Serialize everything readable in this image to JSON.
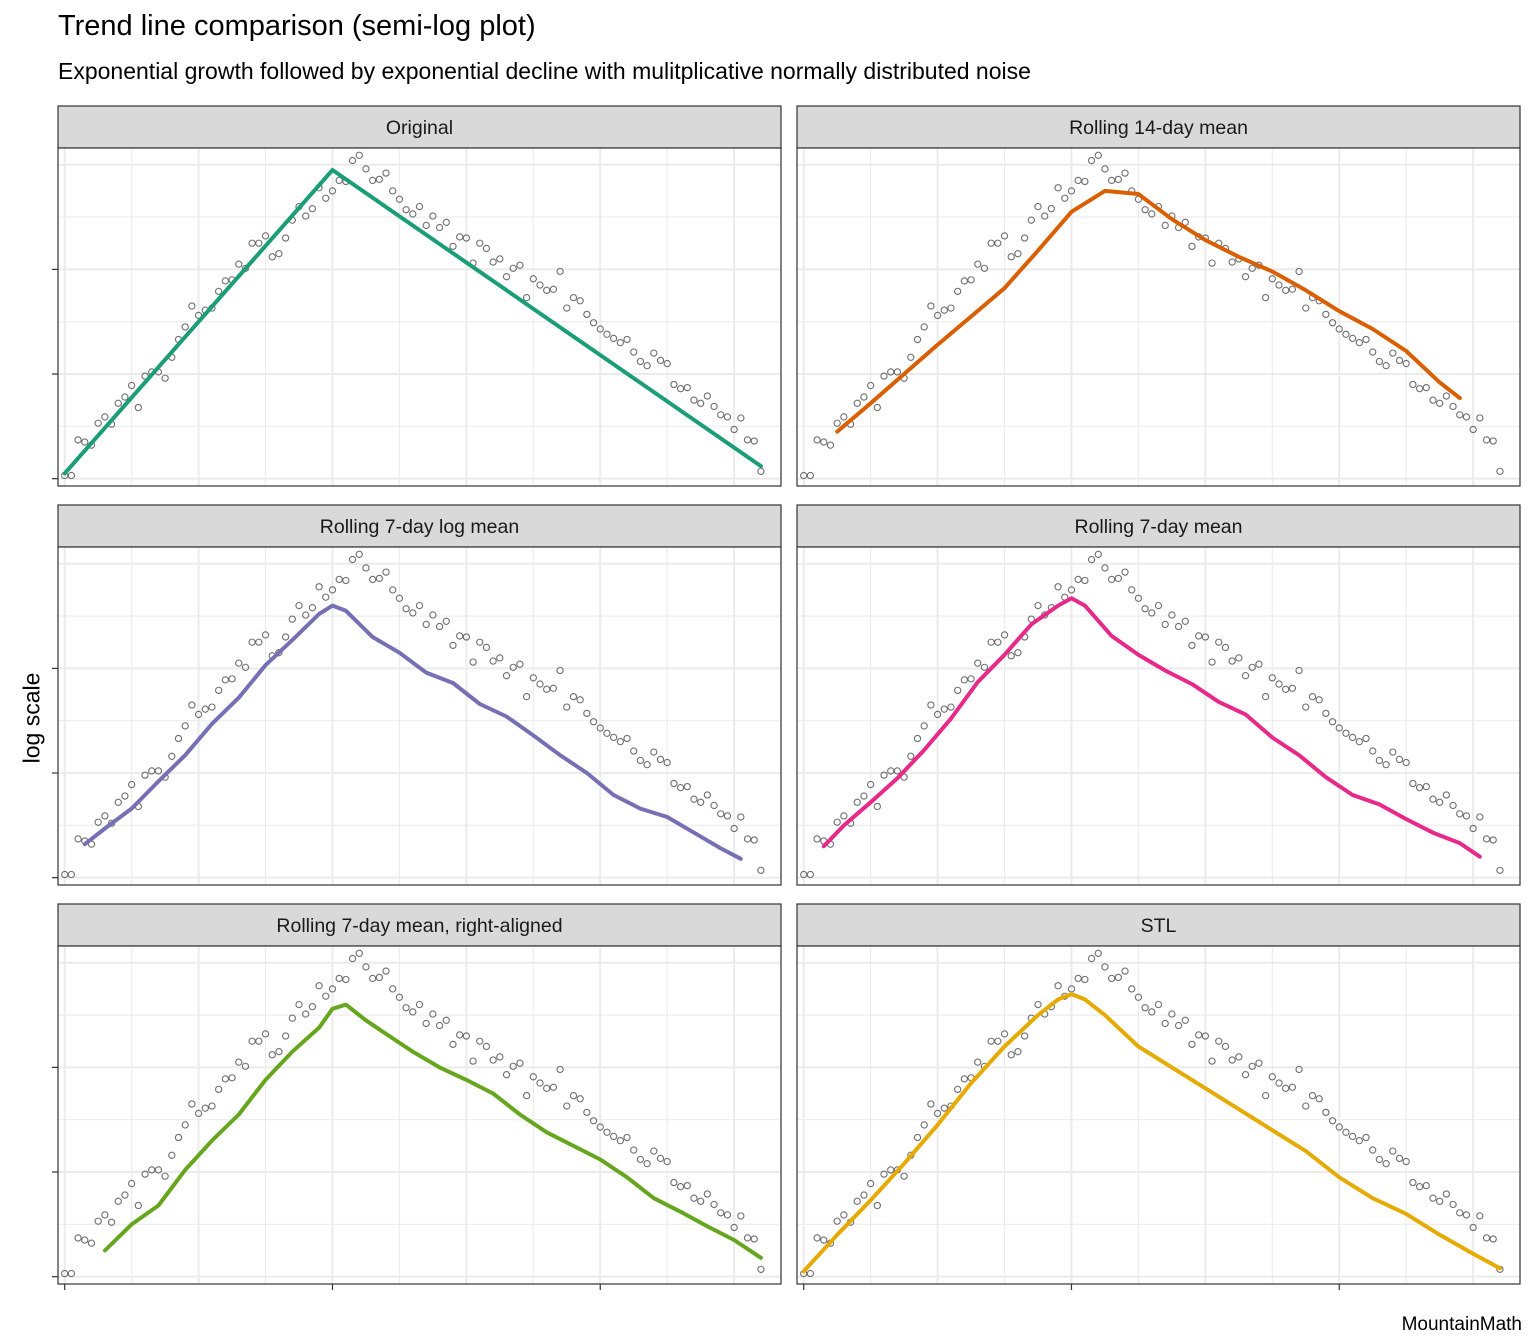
{
  "title": "Trend line comparison (semi-log plot)",
  "subtitle": "Exponential growth followed by exponential decline with mulitplicative normally distributed noise",
  "caption": "MountainMath",
  "colors": {
    "points": "#555555",
    "panel_border": "#333333",
    "strip_fill": "#d9d9d9",
    "grid": "#ebebeb"
  },
  "chart_data": {
    "type": "line",
    "facets": 6,
    "ylabel": "log scale",
    "y_scale": "log",
    "x_tick_labels": [],
    "y_tick_labels": [],
    "grid": true,
    "points": {
      "x": [
        0,
        1,
        2,
        3,
        4,
        5,
        6,
        7,
        8,
        9,
        10,
        11,
        12,
        13,
        14,
        15,
        16,
        17,
        18,
        19,
        20,
        21,
        22,
        23,
        24,
        25,
        26,
        27,
        28,
        29,
        30,
        31,
        32,
        33,
        34,
        35,
        36,
        37,
        38,
        39,
        40,
        41,
        42,
        43,
        44,
        45,
        46,
        47,
        48,
        49,
        50,
        51,
        52,
        53,
        54,
        55,
        56,
        57,
        58,
        59,
        60,
        61,
        62,
        63,
        64,
        65,
        66,
        67,
        68,
        69,
        70,
        71,
        72,
        73,
        74,
        75,
        76,
        77,
        78,
        79,
        80,
        81,
        82,
        83,
        84,
        85,
        86,
        87,
        88,
        89,
        90,
        91,
        92,
        93,
        94,
        95,
        96,
        97,
        98,
        99,
        100,
        101,
        102,
        103,
        104
      ],
      "y": [
        0.03,
        0.03,
        0.37,
        0.35,
        0.32,
        0.53,
        0.59,
        0.52,
        0.72,
        0.78,
        0.89,
        0.68,
        0.98,
        1.02,
        1.02,
        0.96,
        1.16,
        1.33,
        1.45,
        1.65,
        1.56,
        1.61,
        1.63,
        1.79,
        1.89,
        1.9,
        2.05,
        2.01,
        2.25,
        2.25,
        2.32,
        2.12,
        2.15,
        2.3,
        2.47,
        2.6,
        2.51,
        2.58,
        2.78,
        2.68,
        2.75,
        2.85,
        2.84,
        3.04,
        3.09,
        2.96,
        2.85,
        2.86,
        2.92,
        2.75,
        2.67,
        2.57,
        2.53,
        2.6,
        2.42,
        2.51,
        2.4,
        2.45,
        2.22,
        2.31,
        2.3,
        2.06,
        2.25,
        2.2,
        2.07,
        2.1,
        1.93,
        2.01,
        2.04,
        1.73,
        1.91,
        1.85,
        1.8,
        1.81,
        1.98,
        1.63,
        1.73,
        1.7,
        1.57,
        1.49,
        1.43,
        1.38,
        1.34,
        1.3,
        1.33,
        1.21,
        1.12,
        1.08,
        1.2,
        1.13,
        1.1,
        0.9,
        0.86,
        0.87,
        0.75,
        0.72,
        0.79,
        0.69,
        0.61,
        0.59,
        0.47,
        0.58,
        0.37,
        0.36,
        0.07
      ]
    },
    "series": [
      {
        "name": "Original",
        "color": "#1b9e77",
        "x": [
          0,
          40,
          104
        ],
        "y": [
          0.05,
          2.95,
          0.12
        ]
      },
      {
        "name": "Rolling 14-day mean",
        "color": "#d95f02",
        "x": [
          5,
          10,
          15,
          20,
          25,
          30,
          35,
          40,
          45,
          50,
          55,
          60,
          65,
          70,
          75,
          80,
          85,
          90,
          95,
          98
        ],
        "y": [
          0.45,
          0.72,
          1.0,
          1.28,
          1.55,
          1.82,
          2.18,
          2.55,
          2.75,
          2.72,
          2.48,
          2.28,
          2.12,
          1.98,
          1.8,
          1.6,
          1.43,
          1.22,
          0.92,
          0.77
        ]
      },
      {
        "name": "Rolling 7-day log mean",
        "color": "#7570b3",
        "x": [
          3,
          6,
          10,
          14,
          18,
          22,
          26,
          30,
          34,
          38,
          40,
          42,
          46,
          50,
          54,
          58,
          62,
          66,
          70,
          74,
          78,
          82,
          86,
          90,
          94,
          98,
          101
        ],
        "y": [
          0.32,
          0.47,
          0.66,
          0.92,
          1.17,
          1.47,
          1.72,
          2.03,
          2.27,
          2.52,
          2.6,
          2.55,
          2.3,
          2.15,
          1.96,
          1.86,
          1.66,
          1.54,
          1.36,
          1.17,
          1.0,
          0.79,
          0.66,
          0.58,
          0.43,
          0.28,
          0.18
        ]
      },
      {
        "name": "Rolling 7-day mean",
        "color": "#e7298a",
        "x": [
          3,
          6,
          10,
          14,
          18,
          22,
          26,
          30,
          34,
          38,
          40,
          42,
          46,
          50,
          54,
          58,
          62,
          66,
          70,
          74,
          78,
          82,
          86,
          90,
          94,
          98,
          101
        ],
        "y": [
          0.3,
          0.5,
          0.72,
          0.95,
          1.22,
          1.52,
          1.87,
          2.13,
          2.42,
          2.6,
          2.67,
          2.6,
          2.31,
          2.13,
          1.98,
          1.85,
          1.68,
          1.56,
          1.34,
          1.17,
          0.96,
          0.79,
          0.7,
          0.56,
          0.43,
          0.33,
          0.2
        ]
      },
      {
        "name": "Rolling 7-day mean, right-aligned",
        "color": "#66a61e",
        "x": [
          6,
          10,
          14,
          18,
          22,
          26,
          30,
          34,
          38,
          40,
          42,
          45,
          48,
          52,
          56,
          60,
          64,
          68,
          72,
          76,
          80,
          84,
          88,
          92,
          96,
          100,
          104
        ],
        "y": [
          0.25,
          0.5,
          0.68,
          1.02,
          1.3,
          1.55,
          1.88,
          2.15,
          2.38,
          2.56,
          2.6,
          2.45,
          2.32,
          2.15,
          2.0,
          1.88,
          1.75,
          1.55,
          1.38,
          1.25,
          1.12,
          0.95,
          0.75,
          0.62,
          0.48,
          0.35,
          0.18
        ]
      },
      {
        "name": "STL",
        "color": "#e6ab02",
        "x": [
          0,
          5,
          10,
          15,
          20,
          25,
          30,
          35,
          38,
          40,
          42,
          45,
          50,
          55,
          60,
          65,
          70,
          75,
          80,
          85,
          90,
          95,
          100,
          104
        ],
        "y": [
          0.05,
          0.4,
          0.73,
          1.08,
          1.45,
          1.85,
          2.2,
          2.5,
          2.65,
          2.7,
          2.65,
          2.5,
          2.2,
          2.0,
          1.8,
          1.6,
          1.4,
          1.2,
          0.95,
          0.75,
          0.6,
          0.4,
          0.22,
          0.08
        ]
      }
    ],
    "xlim": [
      -1,
      107
    ],
    "ylim": [
      -0.07,
      3.16
    ]
  }
}
